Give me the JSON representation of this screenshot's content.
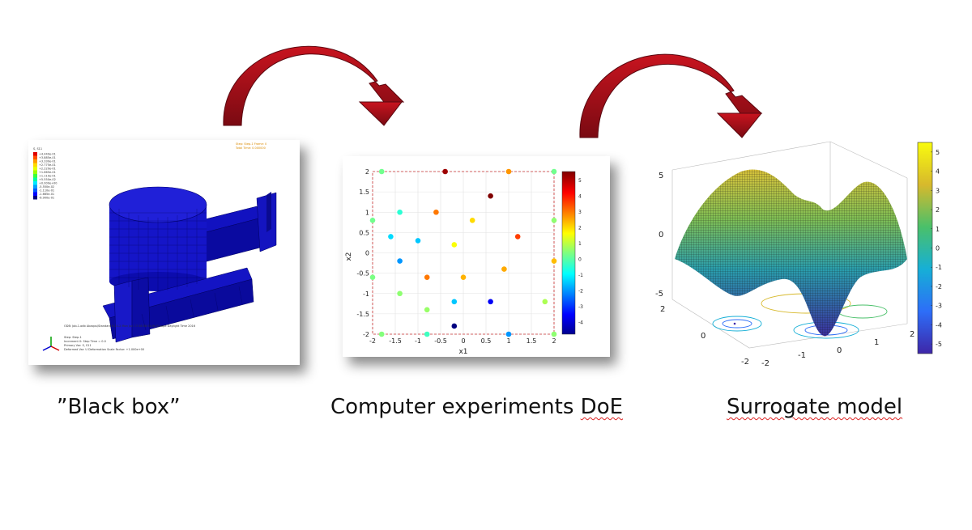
{
  "captions": {
    "black_box": "”Black box”",
    "doe": "Computer experiments DoE",
    "surrogate": "Surrogate model"
  },
  "colors": {
    "arrow": "#a8101c",
    "arrow_dark": "#6e0a12",
    "fea_blue": "#1414c8"
  },
  "fea": {
    "header_right_1": "Step: Step-1    Frame: 0",
    "header_right_2": "Total Time: 0.000000",
    "legend_title": "S, S11",
    "legend_values": [
      "+4.440e-01",
      "+3.885e-01",
      "+3.330e-01",
      "+2.775e-01",
      "+2.220e-01",
      "+1.665e-01",
      "+1.110e-01",
      "+5.550e-02",
      "+0.000e+00",
      "-5.550e-02",
      "-1.110e-01",
      "-1.665e-01",
      "-6.900e-01"
    ],
    "legend_colors": [
      "#e00000",
      "#ff5000",
      "#ff9a00",
      "#ffd800",
      "#e8ff00",
      "#9cff00",
      "#3cff3c",
      "#00ffa0",
      "#00e8ff",
      "#00a0ff",
      "#0058ff",
      "#0000ff",
      "#000080"
    ],
    "footer_odb": "ODB: Job-1.odb    Abaqus/Standard 6.14-2    Mon Jun 13 08:58:54 W. Europe Daylight Time 2016",
    "footer_step": "Step: Step-1",
    "footer_inc": "Increment    0: Step Time = 0.0",
    "footer_var": "Primary Var: S, S11",
    "footer_def": "Deformed Var: U   Deformation Scale Factor: +1.000e+00"
  },
  "doe": {
    "xlabel": "x1",
    "ylabel": "x2",
    "colorbar_ticks": [
      "5",
      "4",
      "3",
      "2",
      "1",
      "0",
      "-1",
      "-2",
      "-3",
      "-4"
    ],
    "chart_data": {
      "type": "scatter",
      "xlabel": "x1",
      "ylabel": "x2",
      "xlim": [
        -2,
        2
      ],
      "ylim": [
        -2,
        2
      ],
      "x_ticks": [
        "-2",
        "-1.5",
        "-1",
        "-0.5",
        "0",
        "0.5",
        "1",
        "1.5",
        "2"
      ],
      "y_ticks": [
        "2",
        "1.5",
        "1",
        "0.5",
        "0",
        "-0.5",
        "-1",
        "-1.5",
        "-2"
      ],
      "colorbar_range": [
        -4.8,
        5.5
      ],
      "points": [
        {
          "x": -1.8,
          "y": 2.0,
          "v": 0.2
        },
        {
          "x": -0.4,
          "y": 2.0,
          "v": 5.2
        },
        {
          "x": 1.0,
          "y": 2.0,
          "v": 2.7
        },
        {
          "x": 2.0,
          "y": 2.0,
          "v": 0.2
        },
        {
          "x": 0.6,
          "y": 1.4,
          "v": 5.5
        },
        {
          "x": -1.4,
          "y": 1.0,
          "v": -0.5
        },
        {
          "x": -0.6,
          "y": 1.0,
          "v": 3.0
        },
        {
          "x": 0.2,
          "y": 0.8,
          "v": 2.0
        },
        {
          "x": -2.0,
          "y": 0.8,
          "v": 0.2
        },
        {
          "x": 2.0,
          "y": 0.8,
          "v": 0.5
        },
        {
          "x": -1.6,
          "y": 0.4,
          "v": -1.3
        },
        {
          "x": -1.0,
          "y": 0.3,
          "v": -1.5
        },
        {
          "x": -0.2,
          "y": 0.2,
          "v": 1.6
        },
        {
          "x": 1.2,
          "y": 0.4,
          "v": 3.6
        },
        {
          "x": -1.4,
          "y": -0.2,
          "v": -2.0
        },
        {
          "x": 2.0,
          "y": -0.2,
          "v": 2.3
        },
        {
          "x": 0.9,
          "y": -0.4,
          "v": 2.5
        },
        {
          "x": -2.0,
          "y": -0.6,
          "v": 0.3
        },
        {
          "x": -0.8,
          "y": -0.6,
          "v": 3.0
        },
        {
          "x": 0.0,
          "y": -0.6,
          "v": 2.4
        },
        {
          "x": -1.4,
          "y": -1.0,
          "v": 0.5
        },
        {
          "x": -0.2,
          "y": -1.2,
          "v": -1.5
        },
        {
          "x": 0.6,
          "y": -1.2,
          "v": -3.6
        },
        {
          "x": 1.8,
          "y": -1.2,
          "v": 0.8
        },
        {
          "x": -0.8,
          "y": -1.4,
          "v": 0.6
        },
        {
          "x": -0.2,
          "y": -1.8,
          "v": -4.8
        },
        {
          "x": -1.8,
          "y": -2.0,
          "v": 0.4
        },
        {
          "x": -0.8,
          "y": -2.0,
          "v": -0.3
        },
        {
          "x": 1.0,
          "y": -2.0,
          "v": -2.0
        },
        {
          "x": 2.0,
          "y": -2.0,
          "v": 0.5
        }
      ]
    }
  },
  "surrogate": {
    "z_ticks": [
      "5",
      "0",
      "-5"
    ],
    "x_ticks": [
      "-2",
      "-1",
      "0",
      "1",
      "2"
    ],
    "y_ticks": [
      "2",
      "0",
      "-2"
    ],
    "colorbar_ticks": [
      "5",
      "4",
      "3",
      "2",
      "1",
      "0",
      "-1",
      "-2",
      "-3",
      "-4",
      "-5"
    ],
    "colorbar_range": [
      -5.5,
      5.5
    ]
  }
}
